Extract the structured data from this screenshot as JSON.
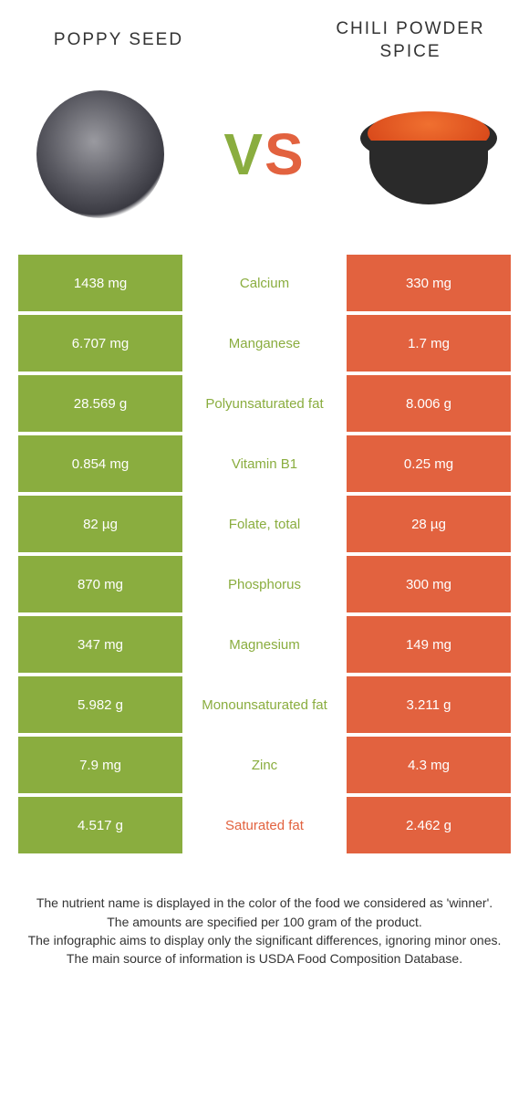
{
  "left_food": {
    "name": "Poppy seed"
  },
  "right_food": {
    "name": "Chili powder spice"
  },
  "vs": {
    "v": "V",
    "s": "S"
  },
  "colors": {
    "left": "#8aad3f",
    "right": "#e2623f",
    "text": "#333333",
    "background": "#ffffff"
  },
  "rows": [
    {
      "left": "1438 mg",
      "mid": "Calcium",
      "right": "330 mg",
      "mid_color": "#8aad3f"
    },
    {
      "left": "6.707 mg",
      "mid": "Manganese",
      "right": "1.7 mg",
      "mid_color": "#8aad3f"
    },
    {
      "left": "28.569 g",
      "mid": "Polyunsaturated fat",
      "right": "8.006 g",
      "mid_color": "#8aad3f"
    },
    {
      "left": "0.854 mg",
      "mid": "Vitamin B1",
      "right": "0.25 mg",
      "mid_color": "#8aad3f"
    },
    {
      "left": "82 µg",
      "mid": "Folate, total",
      "right": "28 µg",
      "mid_color": "#8aad3f"
    },
    {
      "left": "870 mg",
      "mid": "Phosphorus",
      "right": "300 mg",
      "mid_color": "#8aad3f"
    },
    {
      "left": "347 mg",
      "mid": "Magnesium",
      "right": "149 mg",
      "mid_color": "#8aad3f"
    },
    {
      "left": "5.982 g",
      "mid": "Monounsaturated fat",
      "right": "3.211 g",
      "mid_color": "#8aad3f"
    },
    {
      "left": "7.9 mg",
      "mid": "Zinc",
      "right": "4.3 mg",
      "mid_color": "#8aad3f"
    },
    {
      "left": "4.517 g",
      "mid": "Saturated fat",
      "right": "2.462 g",
      "mid_color": "#e2623f"
    }
  ],
  "footer": {
    "line1": "The nutrient name is displayed in the color of the food we considered as 'winner'.",
    "line2": "The amounts are specified per 100 gram of the product.",
    "line3": "The infographic aims to display only the significant differences, ignoring minor ones.",
    "line4": "The main source of information is USDA Food Composition Database."
  },
  "typography": {
    "title_fontsize": 19,
    "cell_fontsize": 15,
    "vs_fontsize": 64,
    "footer_fontsize": 14
  }
}
